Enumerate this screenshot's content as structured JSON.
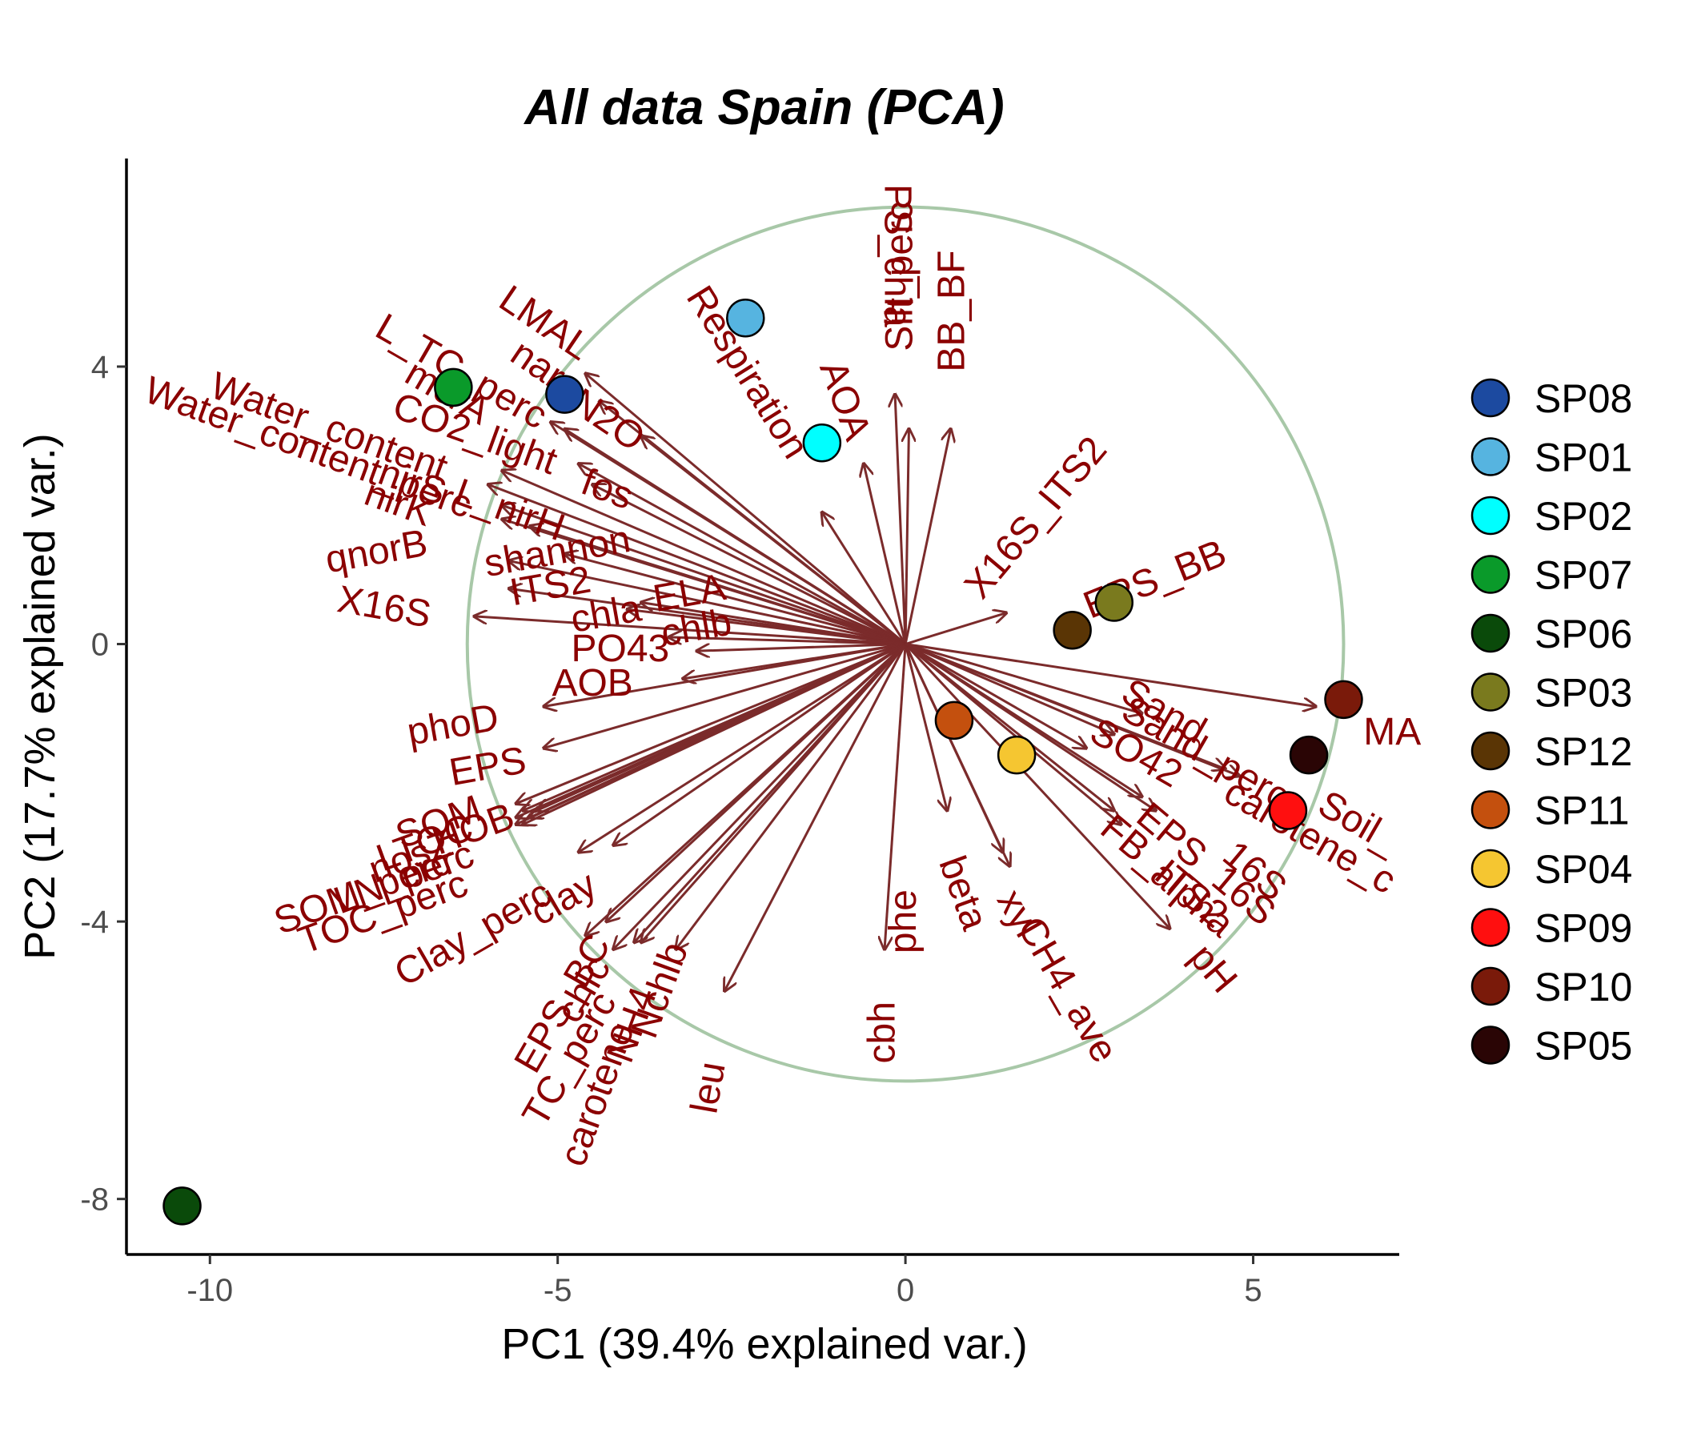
{
  "chart_data": {
    "type": "scatter",
    "title": "All data Spain (PCA)",
    "xlabel": "PC1 (39.4% explained var.)",
    "ylabel": "PC2 (17.7% explained var.)",
    "xlim": [
      -11.2,
      7.1
    ],
    "ylim": [
      -8.8,
      7.0
    ],
    "xticks": [
      -10,
      -5,
      0,
      5
    ],
    "xtick_labels": [
      "-10",
      "-5",
      "0",
      "5"
    ],
    "yticks": [
      4,
      0,
      -4,
      -8
    ],
    "ytick_labels": [
      "4",
      "0",
      "-4",
      "-8"
    ],
    "grid": false,
    "legend_position": "right",
    "circle": {
      "center": [
        0,
        0
      ],
      "radius": 6.3,
      "color": "#a8c8a8"
    },
    "colors": {
      "arrow": "#7b2b2b",
      "label": "#8b0000",
      "axis": "#000000"
    },
    "points": [
      {
        "name": "SP08",
        "x": -4.9,
        "y": 3.6,
        "color": "#1c4aa0"
      },
      {
        "name": "SP01",
        "x": -2.3,
        "y": 4.7,
        "color": "#56b4e0"
      },
      {
        "name": "SP02",
        "x": -1.2,
        "y": 2.9,
        "color": "#00ffff"
      },
      {
        "name": "SP07",
        "x": -6.5,
        "y": 3.7,
        "color": "#0a9a2a"
      },
      {
        "name": "SP06",
        "x": -10.4,
        "y": -8.1,
        "color": "#0a4a0a"
      },
      {
        "name": "SP03",
        "x": 3.0,
        "y": 0.6,
        "color": "#7a7a1e"
      },
      {
        "name": "SP12",
        "x": 2.4,
        "y": 0.2,
        "color": "#5a3505"
      },
      {
        "name": "SP11",
        "x": 0.7,
        "y": -1.1,
        "color": "#c4500e"
      },
      {
        "name": "SP04",
        "x": 1.6,
        "y": -1.6,
        "color": "#f5c631"
      },
      {
        "name": "SP09",
        "x": 5.5,
        "y": -2.4,
        "color": "#ff0f0f"
      },
      {
        "name": "SP10",
        "x": 6.3,
        "y": -0.8,
        "color": "#7a1a0a"
      },
      {
        "name": "SP05",
        "x": 5.8,
        "y": -1.6,
        "color": "#2a0505"
      }
    ],
    "loadings": [
      {
        "label": "PS_chla",
        "x": -0.15,
        "y": 3.6,
        "lx": -0.15,
        "ly": 5.6,
        "rot": 90
      },
      {
        "label": "Silt_perc",
        "x": 0.05,
        "y": 3.1,
        "lx": -0.05,
        "ly": 5.3,
        "rot": -90
      },
      {
        "label": "BB_BF",
        "x": 0.65,
        "y": 3.1,
        "lx": 0.7,
        "ly": 4.8,
        "rot": -90
      },
      {
        "label": "AOA",
        "x": -0.6,
        "y": 2.6,
        "lx": -0.9,
        "ly": 3.5,
        "rot": 70
      },
      {
        "label": "Respiration",
        "x": -1.2,
        "y": 1.9,
        "lx": -2.3,
        "ly": 3.9,
        "rot": 58
      },
      {
        "label": "X16S_ITS2",
        "x": 1.45,
        "y": 0.45,
        "lx": 1.9,
        "ly": 1.8,
        "rot": -50
      },
      {
        "label": "EPS_BB",
        "x": 0.0,
        "y": 0.0,
        "lx": 3.6,
        "ly": 0.9,
        "rot": -22
      },
      {
        "label": "LMAL",
        "x": -4.6,
        "y": 3.9,
        "lx": -5.2,
        "ly": 4.6,
        "rot": 34
      },
      {
        "label": "nar",
        "x": -4.4,
        "y": 3.5,
        "lx": -5.3,
        "ly": 4.0,
        "rot": 34
      },
      {
        "label": "N2O",
        "x": -3.8,
        "y": 3.0,
        "lx": -4.3,
        "ly": 3.2,
        "rot": 34
      },
      {
        "label": "mcrA",
        "x": -4.9,
        "y": 3.1,
        "lx": -6.6,
        "ly": 3.6,
        "rot": 30
      },
      {
        "label": "L_TC_perc",
        "x": -5.1,
        "y": 3.2,
        "lx": -6.4,
        "ly": 3.9,
        "rot": 30
      },
      {
        "label": "CO2_light",
        "x": -4.7,
        "y": 2.6,
        "lx": -6.2,
        "ly": 3.0,
        "rot": 20
      },
      {
        "label": "fos",
        "x": -4.5,
        "y": 2.3,
        "lx": -4.3,
        "ly": 2.2,
        "rot": 20
      },
      {
        "label": "Water_content",
        "x": -5.8,
        "y": 2.5,
        "lx": -8.3,
        "ly": 3.1,
        "rot": 20
      },
      {
        "label": "Water_content_perc",
        "x": -6.0,
        "y": 2.3,
        "lx": -8.6,
        "ly": 2.8,
        "rot": 20
      },
      {
        "label": "nirS",
        "x": -5.8,
        "y": 2.0,
        "lx": -7.1,
        "ly": 2.3,
        "rot": 20
      },
      {
        "label": "nirK",
        "x": -5.8,
        "y": 1.8,
        "lx": -7.3,
        "ly": 2.0,
        "rot": 20
      },
      {
        "label": "L_nirH",
        "x": -5.4,
        "y": 1.7,
        "lx": -5.7,
        "ly": 1.9,
        "rot": 20
      },
      {
        "label": "shannon",
        "x": -4.9,
        "y": 1.3,
        "lx": -5.0,
        "ly": 1.3,
        "rot": -10
      },
      {
        "label": "ELA",
        "x": -3.8,
        "y": 0.6,
        "lx": -3.1,
        "ly": 0.7,
        "rot": -10
      },
      {
        "label": "qnorB",
        "x": -5.7,
        "y": 1.2,
        "lx": -7.6,
        "ly": 1.3,
        "rot": -10
      },
      {
        "label": "ITS2",
        "x": -5.7,
        "y": 0.8,
        "lx": -5.1,
        "ly": 0.8,
        "rot": -10
      },
      {
        "label": "chla",
        "x": -4.0,
        "y": 0.5,
        "lx": -4.3,
        "ly": 0.4,
        "rot": -10
      },
      {
        "label": "chlb",
        "x": -3.4,
        "y": 0.1,
        "lx": -3.0,
        "ly": 0.2,
        "rot": -10
      },
      {
        "label": "X16S",
        "x": -6.2,
        "y": 0.4,
        "lx": -7.5,
        "ly": 0.5,
        "rot": 10
      },
      {
        "label": "PO43",
        "x": -3.0,
        "y": -0.1,
        "lx": -4.1,
        "ly": -0.1,
        "rot": 0
      },
      {
        "label": "AOB",
        "x": -3.2,
        "y": -0.5,
        "lx": -4.5,
        "ly": -0.6,
        "rot": 0
      },
      {
        "label": "phoD",
        "x": -5.2,
        "y": -0.9,
        "lx": -6.5,
        "ly": -1.2,
        "rot": -10
      },
      {
        "label": "EPS",
        "x": -5.2,
        "y": -1.5,
        "lx": -6.0,
        "ly": -1.8,
        "rot": -10
      },
      {
        "label": "SOM_perc",
        "x": -5.6,
        "y": -2.5,
        "lx": -7.8,
        "ly": -3.6,
        "rot": -20
      },
      {
        "label": "TOC_perc",
        "x": -5.6,
        "y": -2.6,
        "lx": -7.5,
        "ly": -3.9,
        "rot": -20
      },
      {
        "label": "LN_perc",
        "x": -5.5,
        "y": -2.6,
        "lx": -7.2,
        "ly": -3.4,
        "rot": -20
      },
      {
        "label": "nosZ",
        "x": -5.4,
        "y": -2.5,
        "lx": -7.1,
        "ly": -3.1,
        "rot": -20
      },
      {
        "label": "LTOC",
        "x": -5.5,
        "y": -2.4,
        "lx": -6.9,
        "ly": -2.9,
        "rot": -20
      },
      {
        "label": "SOM",
        "x": -5.6,
        "y": -2.3,
        "lx": -6.7,
        "ly": -2.6,
        "rot": -20
      },
      {
        "label": "HOB",
        "x": -5.3,
        "y": -2.4,
        "lx": -6.2,
        "ly": -2.7,
        "rot": -20
      },
      {
        "label": "clay",
        "x": -4.2,
        "y": -2.9,
        "lx": -4.9,
        "ly": -3.7,
        "rot": -30
      },
      {
        "label": "Clay_perc",
        "x": -4.7,
        "y": -3.0,
        "lx": -6.2,
        "ly": -4.2,
        "rot": -30
      },
      {
        "label": "chlc",
        "x": -4.3,
        "y": -4.0,
        "lx": -4.6,
        "ly": -5.0,
        "rot": -60
      },
      {
        "label": "TC_perc",
        "x": -4.2,
        "y": -4.4,
        "lx": -4.8,
        "ly": -6.0,
        "rot": -60
      },
      {
        "label": "EPS_BC",
        "x": -4.6,
        "y": -4.2,
        "lx": -4.9,
        "ly": -5.2,
        "rot": -60
      },
      {
        "label": "NH4",
        "x": -3.9,
        "y": -4.3,
        "lx": -3.9,
        "ly": -5.5,
        "rot": -70
      },
      {
        "label": "Nchlb",
        "x": -3.3,
        "y": -4.4,
        "lx": -3.5,
        "ly": -5.0,
        "rot": -70
      },
      {
        "label": "carotene",
        "x": -3.8,
        "y": -4.3,
        "lx": -4.4,
        "ly": -6.5,
        "rot": -70
      },
      {
        "label": "leu",
        "x": -2.6,
        "y": -5.0,
        "lx": -2.8,
        "ly": -6.4,
        "rot": -80
      },
      {
        "label": "cbh",
        "x": -0.3,
        "y": -4.4,
        "lx": -0.3,
        "ly": -5.6,
        "rot": -90
      },
      {
        "label": "phe",
        "x": 0.0,
        "y": 0.0,
        "lx": 0.0,
        "ly": -4.0,
        "rot": -90
      },
      {
        "label": "beta",
        "x": 0.6,
        "y": -2.4,
        "lx": 0.8,
        "ly": -3.6,
        "rot": 70
      },
      {
        "label": "xyl",
        "x": 1.5,
        "y": -3.2,
        "lx": 1.6,
        "ly": -3.9,
        "rot": 60
      },
      {
        "label": "CH4_ave",
        "x": 1.4,
        "y": -3.0,
        "lx": 2.3,
        "ly": -5.0,
        "rot": 60
      },
      {
        "label": "pH",
        "x": 3.8,
        "y": -4.1,
        "lx": 4.4,
        "ly": -4.7,
        "rot": 50
      },
      {
        "label": "alpha",
        "x": 3.1,
        "y": -2.6,
        "lx": 4.1,
        "ly": -3.7,
        "rot": 40
      },
      {
        "label": "FB_ITS2",
        "x": 3.0,
        "y": -2.4,
        "lx": 3.7,
        "ly": -3.3,
        "rot": 40
      },
      {
        "label": "EPS_16S",
        "x": 3.4,
        "y": -2.2,
        "lx": 4.3,
        "ly": -3.2,
        "rot": 40
      },
      {
        "label": "16S",
        "x": 3.6,
        "y": -2.4,
        "lx": 5.0,
        "ly": -3.3,
        "rot": 40
      },
      {
        "label": "SO42",
        "x": 2.6,
        "y": -1.5,
        "lx": 3.3,
        "ly": -1.6,
        "rot": 30
      },
      {
        "label": "Sand_perc",
        "x": 3.0,
        "y": -1.3,
        "lx": 4.3,
        "ly": -1.6,
        "rot": 30
      },
      {
        "label": "carotene_c",
        "x": 4.8,
        "y": -1.9,
        "lx": 5.8,
        "ly": -2.8,
        "rot": 30
      },
      {
        "label": "Soil_",
        "x": 4.6,
        "y": -1.8,
        "lx": 6.5,
        "ly": -2.6,
        "rot": 30
      },
      {
        "label": "Sand",
        "x": 3.4,
        "y": -1.0,
        "lx": 3.7,
        "ly": -1.0,
        "rot": 30
      },
      {
        "label": "MA",
        "x": 5.9,
        "y": -0.9,
        "lx": 7.0,
        "ly": -1.3,
        "rot": 0
      }
    ]
  }
}
